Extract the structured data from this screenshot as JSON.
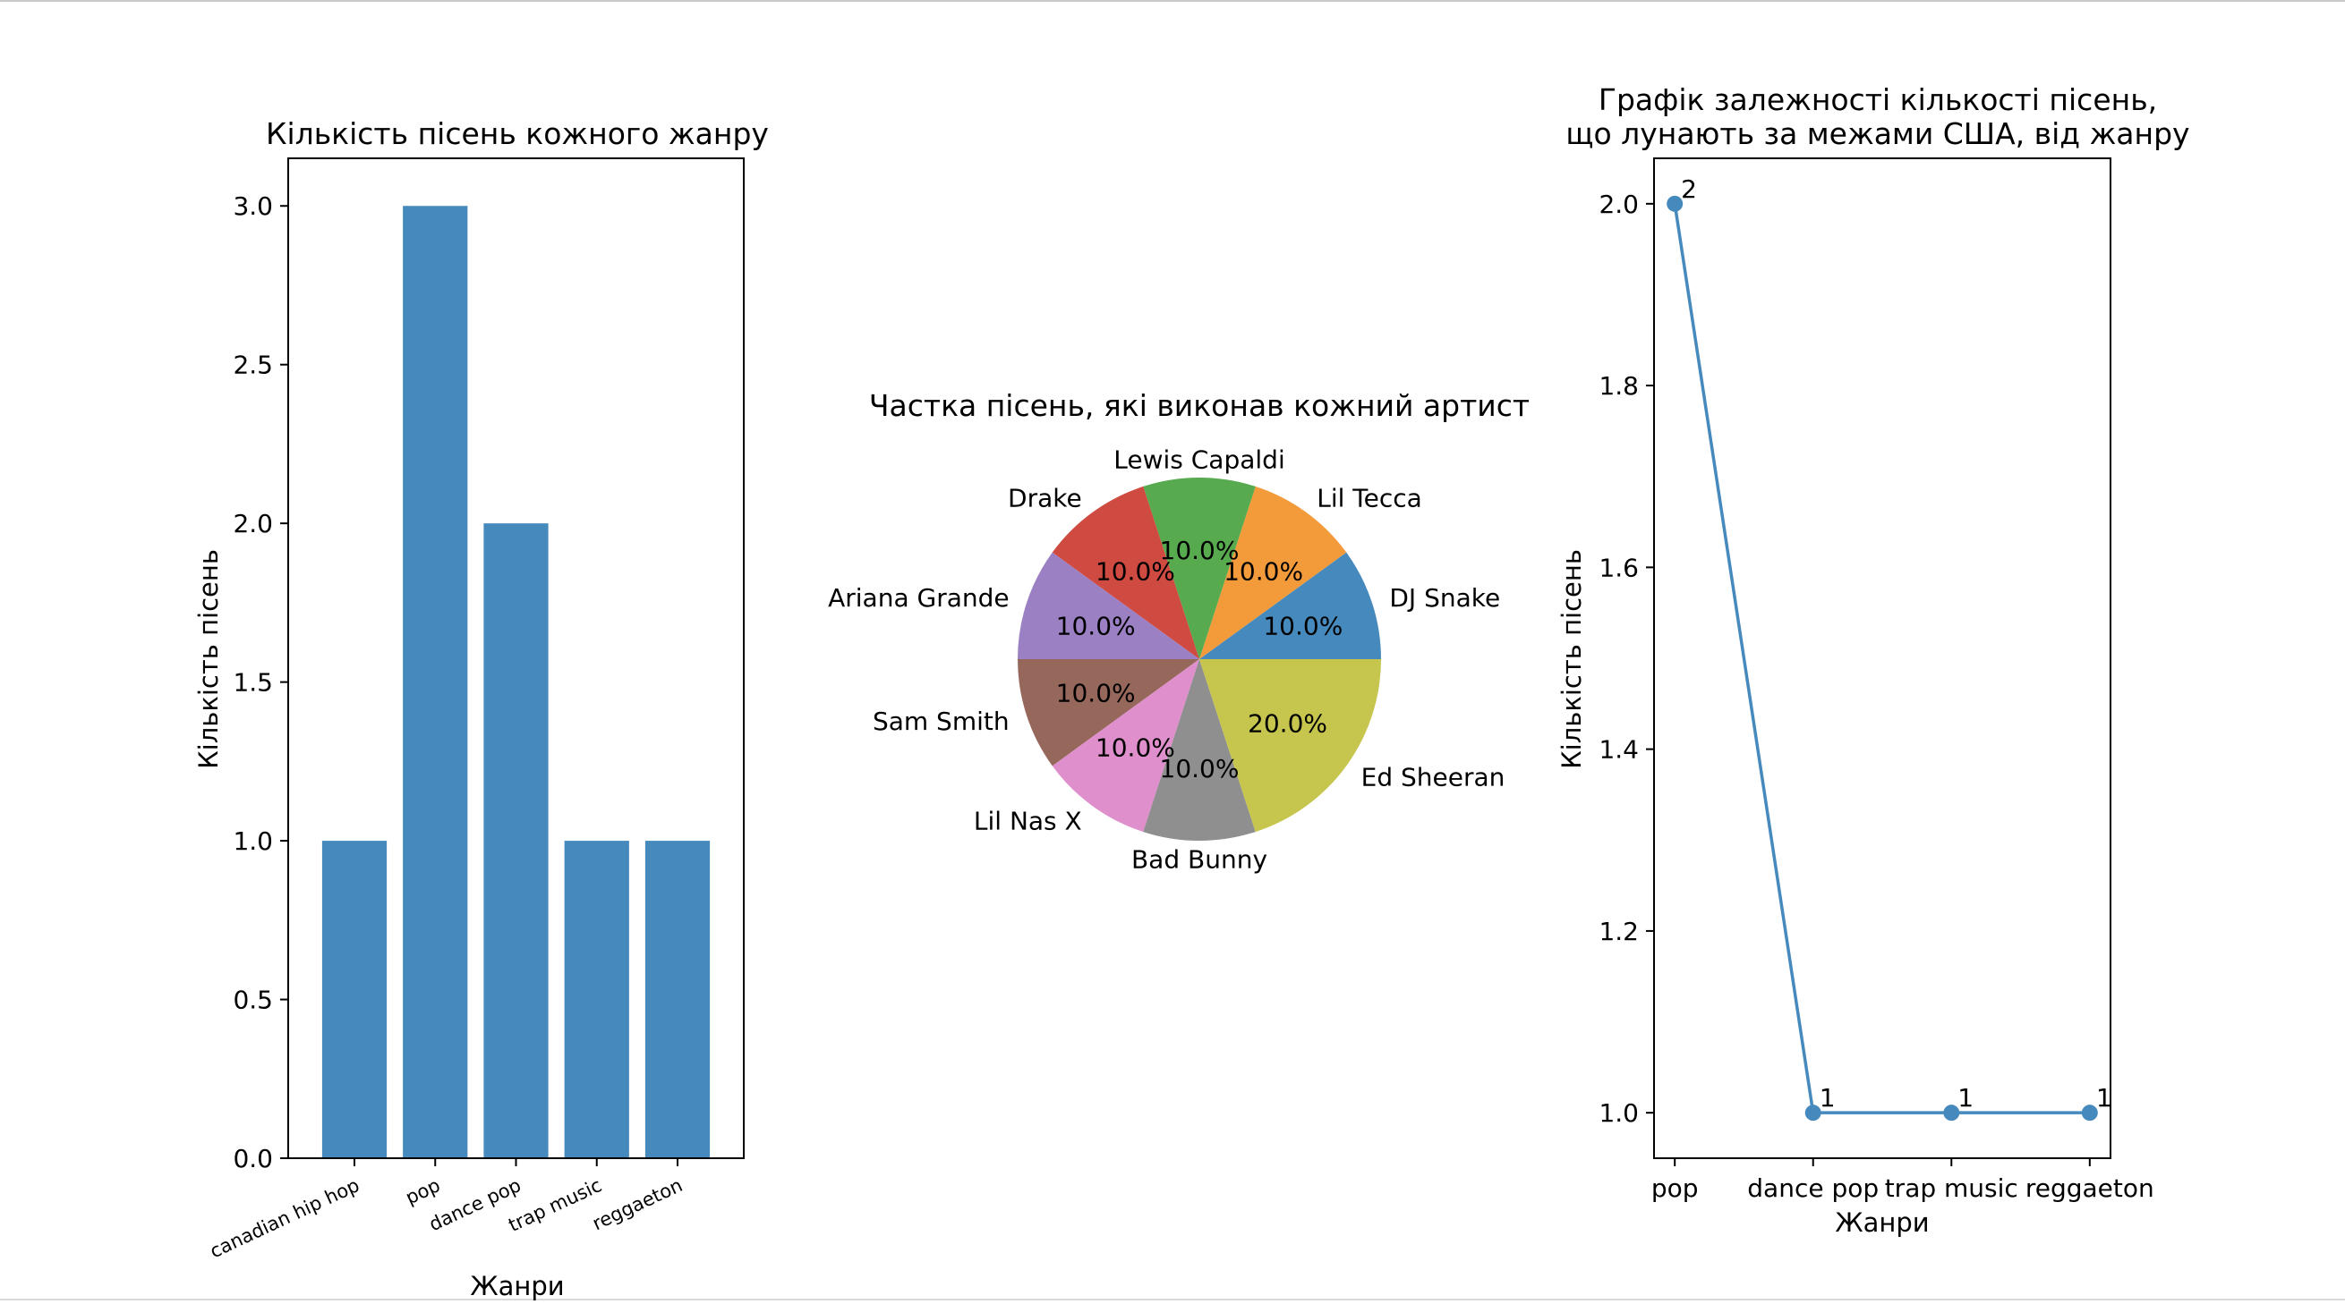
{
  "chart_data": [
    {
      "type": "bar",
      "title": "Кількість пісень кожного жанру",
      "xlabel": "Жанри",
      "ylabel": "Кількість пісень",
      "categories": [
        "canadian hip hop",
        "pop",
        "dance pop",
        "trap music",
        "reggaeton"
      ],
      "values": [
        1,
        3,
        2,
        1,
        1
      ],
      "ylim": [
        0,
        3.15
      ],
      "yticks": [
        "0.0",
        "0.5",
        "1.0",
        "1.5",
        "2.0",
        "2.5",
        "3.0"
      ],
      "color": "#4689bd",
      "grid": false
    },
    {
      "type": "pie",
      "title": "Частка пісень, які виконав кожний артист",
      "labels": [
        "DJ Snake",
        "Lil Tecca",
        "Lewis Capaldi",
        "Drake",
        "Ariana Grande",
        "Sam Smith",
        "Lil Nas X",
        "Bad Bunny",
        "Ed Sheeran"
      ],
      "values": [
        10,
        10,
        10,
        10,
        10,
        10,
        10,
        10,
        20
      ],
      "pct_labels": [
        "10.0%",
        "10.0%",
        "10.0%",
        "10.0%",
        "10.0%",
        "10.0%",
        "10.0%",
        "10.0%",
        "20.0%"
      ],
      "colors": [
        "#4689bd",
        "#f39b3b",
        "#58aa4f",
        "#cf4a40",
        "#9b80c3",
        "#96675b",
        "#df8fcb",
        "#8f8f8f",
        "#c6c54d"
      ]
    },
    {
      "type": "line",
      "title_line1": "Графік залежності кількості пісень,",
      "title_line2": "що лунають за межами США, від жанру",
      "xlabel": "Жанри",
      "ylabel": "Кількість пісень",
      "categories": [
        "pop",
        "dance pop",
        "trap music",
        "reggaeton"
      ],
      "values": [
        2,
        1,
        1,
        1
      ],
      "data_labels": [
        "2",
        "1",
        "1",
        "1"
      ],
      "ylim": [
        0.95,
        2.05
      ],
      "yticks": [
        "1.0",
        "1.2",
        "1.4",
        "1.6",
        "1.8",
        "2.0"
      ],
      "color": "#4689bd",
      "markers": true,
      "grid": false
    }
  ]
}
